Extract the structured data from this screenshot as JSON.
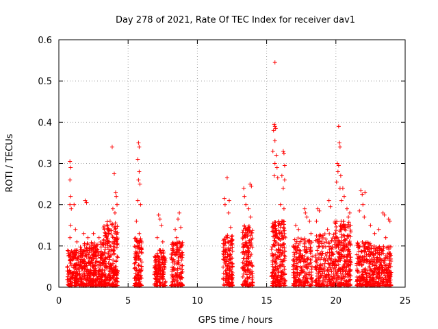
{
  "chart_data": {
    "type": "scatter",
    "title": "Day 278 of 2021, Rate Of TEC Index for receiver dav1",
    "xlabel": "GPS time / hours",
    "ylabel": "ROTI / TECUs",
    "xlim": [
      0,
      25
    ],
    "ylim": [
      0,
      0.6
    ],
    "x_ticks": [
      0,
      5,
      10,
      15,
      20,
      25
    ],
    "x_tick_labels": [
      "0",
      "5",
      "10",
      "15",
      "20",
      "25"
    ],
    "y_ticks": [
      0,
      0.1,
      0.2,
      0.3,
      0.4,
      0.5,
      0.6
    ],
    "y_tick_labels": [
      "0",
      "0.1",
      "0.2",
      "0.3",
      "0.4",
      "0.5",
      "0.6"
    ],
    "grid": true,
    "marker": "+",
    "color": "#ff0000",
    "series": [
      {
        "points": [
          [
            0.8,
            0.305
          ],
          [
            0.85,
            0.29
          ],
          [
            0.8,
            0.26
          ],
          [
            0.85,
            0.22
          ],
          [
            0.8,
            0.2
          ],
          [
            0.9,
            0.19
          ],
          [
            0.85,
            0.15
          ],
          [
            0.8,
            0.12
          ],
          [
            1.1,
            0.2
          ],
          [
            1.2,
            0.14
          ],
          [
            1.3,
            0.11
          ],
          [
            1.9,
            0.21
          ],
          [
            2.0,
            0.205
          ],
          [
            1.8,
            0.13
          ],
          [
            2.1,
            0.12
          ],
          [
            2.5,
            0.13
          ],
          [
            2.9,
            0.12
          ],
          [
            3.4,
            0.13
          ],
          [
            3.6,
            0.14
          ],
          [
            3.7,
            0.16
          ],
          [
            3.9,
            0.19
          ],
          [
            3.85,
            0.34
          ],
          [
            4.0,
            0.275
          ],
          [
            4.1,
            0.23
          ],
          [
            4.15,
            0.22
          ],
          [
            4.2,
            0.2
          ],
          [
            4.05,
            0.18
          ],
          [
            5.75,
            0.35
          ],
          [
            5.8,
            0.34
          ],
          [
            5.7,
            0.31
          ],
          [
            5.8,
            0.28
          ],
          [
            5.75,
            0.26
          ],
          [
            5.85,
            0.25
          ],
          [
            5.7,
            0.21
          ],
          [
            5.9,
            0.2
          ],
          [
            5.6,
            0.16
          ],
          [
            5.8,
            0.13
          ],
          [
            7.2,
            0.175
          ],
          [
            7.3,
            0.165
          ],
          [
            7.4,
            0.15
          ],
          [
            7.1,
            0.12
          ],
          [
            7.5,
            0.11
          ],
          [
            8.4,
            0.14
          ],
          [
            8.7,
            0.18
          ],
          [
            8.6,
            0.165
          ],
          [
            8.8,
            0.145
          ],
          [
            8.5,
            0.12
          ],
          [
            11.95,
            0.215
          ],
          [
            12.0,
            0.2
          ],
          [
            12.15,
            0.265
          ],
          [
            12.3,
            0.21
          ],
          [
            12.25,
            0.18
          ],
          [
            12.4,
            0.145
          ],
          [
            12.1,
            0.12
          ],
          [
            13.35,
            0.24
          ],
          [
            13.4,
            0.22
          ],
          [
            13.5,
            0.2
          ],
          [
            13.8,
            0.25
          ],
          [
            13.9,
            0.245
          ],
          [
            13.7,
            0.19
          ],
          [
            13.85,
            0.17
          ],
          [
            13.6,
            0.14
          ],
          [
            15.6,
            0.545
          ],
          [
            15.55,
            0.395
          ],
          [
            15.6,
            0.39
          ],
          [
            15.65,
            0.385
          ],
          [
            15.5,
            0.38
          ],
          [
            15.6,
            0.355
          ],
          [
            15.45,
            0.33
          ],
          [
            15.7,
            0.32
          ],
          [
            15.6,
            0.3
          ],
          [
            15.75,
            0.29
          ],
          [
            15.55,
            0.27
          ],
          [
            15.8,
            0.265
          ],
          [
            16.2,
            0.33
          ],
          [
            16.25,
            0.325
          ],
          [
            16.3,
            0.295
          ],
          [
            16.1,
            0.27
          ],
          [
            16.3,
            0.26
          ],
          [
            16.2,
            0.24
          ],
          [
            16.0,
            0.2
          ],
          [
            16.25,
            0.19
          ],
          [
            16.1,
            0.16
          ],
          [
            17.1,
            0.15
          ],
          [
            17.3,
            0.14
          ],
          [
            17.75,
            0.19
          ],
          [
            17.8,
            0.18
          ],
          [
            17.9,
            0.17
          ],
          [
            18.1,
            0.16
          ],
          [
            18.2,
            0.13
          ],
          [
            18.6,
            0.16
          ],
          [
            18.7,
            0.19
          ],
          [
            18.8,
            0.185
          ],
          [
            19.5,
            0.21
          ],
          [
            19.6,
            0.195
          ],
          [
            19.4,
            0.14
          ],
          [
            20.2,
            0.39
          ],
          [
            20.25,
            0.35
          ],
          [
            20.3,
            0.34
          ],
          [
            20.1,
            0.3
          ],
          [
            20.2,
            0.295
          ],
          [
            20.15,
            0.28
          ],
          [
            20.35,
            0.27
          ],
          [
            20.05,
            0.255
          ],
          [
            20.3,
            0.24
          ],
          [
            20.5,
            0.24
          ],
          [
            20.6,
            0.22
          ],
          [
            20.4,
            0.21
          ],
          [
            20.8,
            0.19
          ],
          [
            21.0,
            0.18
          ],
          [
            20.9,
            0.17
          ],
          [
            21.8,
            0.235
          ],
          [
            21.9,
            0.225
          ],
          [
            22.1,
            0.23
          ],
          [
            21.95,
            0.2
          ],
          [
            21.7,
            0.185
          ],
          [
            22.05,
            0.17
          ],
          [
            22.5,
            0.15
          ],
          [
            22.8,
            0.13
          ],
          [
            23.1,
            0.14
          ],
          [
            23.4,
            0.18
          ],
          [
            23.5,
            0.175
          ],
          [
            23.8,
            0.165
          ],
          [
            23.9,
            0.16
          ],
          [
            23.6,
            0.12
          ]
        ],
        "dense_bands": [
          {
            "x_range": [
              0.6,
              1.5
            ],
            "y_range": [
              0.0,
              0.09
            ],
            "count": 160
          },
          {
            "x_range": [
              1.5,
              3.2
            ],
            "y_range": [
              0.0,
              0.11
            ],
            "count": 360
          },
          {
            "x_range": [
              3.2,
              4.25
            ],
            "y_range": [
              0.0,
              0.16
            ],
            "count": 260
          },
          {
            "x_range": [
              5.45,
              6.0
            ],
            "y_range": [
              0.0,
              0.12
            ],
            "count": 130
          },
          {
            "x_range": [
              6.9,
              7.7
            ],
            "y_range": [
              0.0,
              0.09
            ],
            "count": 150
          },
          {
            "x_range": [
              8.1,
              8.95
            ],
            "y_range": [
              0.0,
              0.11
            ],
            "count": 150
          },
          {
            "x_range": [
              11.85,
              12.55
            ],
            "y_range": [
              0.0,
              0.13
            ],
            "count": 150
          },
          {
            "x_range": [
              13.25,
              14.0
            ],
            "y_range": [
              0.0,
              0.15
            ],
            "count": 170
          },
          {
            "x_range": [
              15.35,
              16.35
            ],
            "y_range": [
              0.0,
              0.16
            ],
            "count": 260
          },
          {
            "x_range": [
              16.9,
              18.3
            ],
            "y_range": [
              0.0,
              0.12
            ],
            "count": 230
          },
          {
            "x_range": [
              18.5,
              19.9
            ],
            "y_range": [
              0.0,
              0.13
            ],
            "count": 220
          },
          {
            "x_range": [
              19.9,
              21.1
            ],
            "y_range": [
              0.0,
              0.16
            ],
            "count": 280
          },
          {
            "x_range": [
              21.5,
              22.7
            ],
            "y_range": [
              0.0,
              0.11
            ],
            "count": 220
          },
          {
            "x_range": [
              22.7,
              24.0
            ],
            "y_range": [
              0.0,
              0.1
            ],
            "count": 230
          }
        ]
      }
    ]
  }
}
